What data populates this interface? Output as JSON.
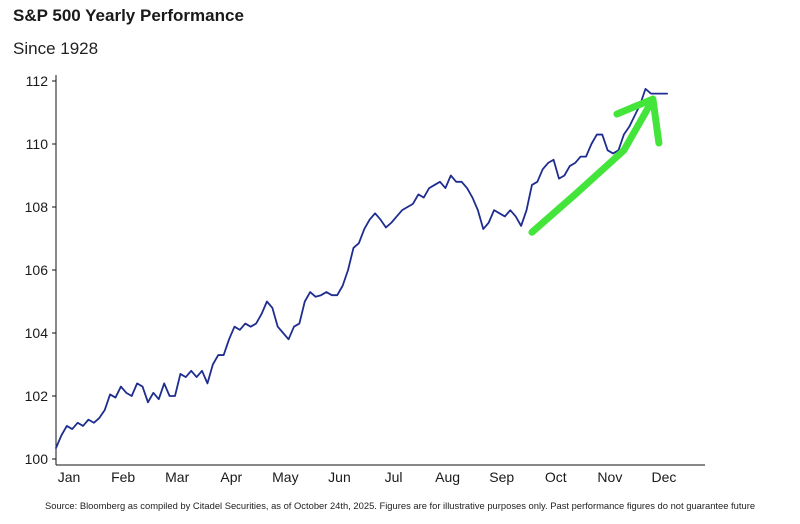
{
  "header": {
    "title": "S&P 500 Yearly Performance",
    "subtitle": "Since 1928"
  },
  "footer": {
    "source": "Source: Bloomberg as compiled by Citadel Securities, as of October 24th, 2025. Figures are for illustrative purposes only. Past performance figures do not guarantee future"
  },
  "chart_data": {
    "type": "line",
    "title": "S&P 500 Yearly Performance",
    "subtitle": "Since 1928",
    "xlabel": "",
    "ylabel": "",
    "x_ticks": [
      "Jan",
      "Feb",
      "Mar",
      "Apr",
      "May",
      "Jun",
      "Jul",
      "Aug",
      "Sep",
      "Oct",
      "Nov",
      "Dec"
    ],
    "y_ticks": [
      100,
      102,
      104,
      106,
      108,
      110,
      112
    ],
    "xlim": [
      0,
      12
    ],
    "ylim": [
      100,
      112
    ],
    "grid": false,
    "legend": "none",
    "series": [
      {
        "color": "#1e2d8f",
        "x": [
          0.0,
          0.1,
          0.2,
          0.3,
          0.4,
          0.5,
          0.6,
          0.7,
          0.8,
          0.9,
          1.0,
          1.1,
          1.2,
          1.3,
          1.4,
          1.5,
          1.6,
          1.7,
          1.8,
          1.9,
          2.0,
          2.1,
          2.2,
          2.3,
          2.4,
          2.5,
          2.6,
          2.7,
          2.8,
          2.9,
          3.0,
          3.1,
          3.2,
          3.3,
          3.4,
          3.5,
          3.6,
          3.7,
          3.8,
          3.9,
          4.0,
          4.1,
          4.2,
          4.3,
          4.4,
          4.5,
          4.6,
          4.7,
          4.8,
          4.9,
          5.0,
          5.1,
          5.2,
          5.3,
          5.4,
          5.5,
          5.6,
          5.7,
          5.8,
          5.9,
          6.0,
          6.1,
          6.2,
          6.3,
          6.4,
          6.5,
          6.6,
          6.7,
          6.8,
          6.9,
          7.0,
          7.1,
          7.2,
          7.3,
          7.4,
          7.5,
          7.6,
          7.7,
          7.8,
          7.9,
          8.0,
          8.1,
          8.2,
          8.3,
          8.4,
          8.5,
          8.6,
          8.7,
          8.8,
          8.9,
          9.0,
          9.1,
          9.2,
          9.3,
          9.4,
          9.5,
          9.6,
          9.7,
          9.8,
          9.9,
          10.0,
          10.1,
          10.2,
          10.3,
          10.4,
          10.5,
          10.6,
          10.7,
          10.8,
          10.9,
          11.0,
          11.1,
          11.2,
          11.3
        ],
        "values": [
          100.35,
          100.75,
          101.05,
          100.95,
          101.15,
          101.05,
          101.25,
          101.15,
          101.3,
          101.55,
          102.05,
          101.95,
          102.3,
          102.1,
          102.0,
          102.4,
          102.3,
          101.8,
          102.1,
          101.9,
          102.4,
          102.0,
          102.0,
          102.7,
          102.6,
          102.8,
          102.6,
          102.8,
          102.4,
          103.0,
          103.3,
          103.3,
          103.8,
          104.2,
          104.1,
          104.3,
          104.2,
          104.3,
          104.6,
          105.0,
          104.8,
          104.2,
          104.0,
          103.8,
          104.2,
          104.3,
          105.0,
          105.3,
          105.15,
          105.2,
          105.3,
          105.2,
          105.2,
          105.5,
          106.0,
          106.7,
          106.85,
          107.3,
          107.6,
          107.8,
          107.6,
          107.35,
          107.5,
          107.7,
          107.9,
          108.0,
          108.1,
          108.4,
          108.3,
          108.6,
          108.7,
          108.8,
          108.6,
          109.0,
          108.8,
          108.8,
          108.6,
          108.3,
          107.9,
          107.3,
          107.5,
          107.9,
          107.8,
          107.7,
          107.9,
          107.7,
          107.4,
          107.9,
          108.7,
          108.8,
          109.2,
          109.4,
          109.5,
          108.9,
          109.0,
          109.3,
          109.4,
          109.6,
          109.6,
          110.0,
          110.3,
          110.3,
          109.8,
          109.7,
          109.8,
          110.3,
          110.55,
          110.9,
          111.25,
          111.75,
          111.6,
          111.6,
          111.6,
          111.6
        ]
      },
      {
        "color": "#44e53a",
        "x": [
          8.8,
          9.6,
          10.5,
          11.0
        ],
        "values": [
          107.2,
          108.4,
          109.8,
          111.3
        ]
      }
    ],
    "annotations": [
      {
        "type": "arrow",
        "color": "#44e53a",
        "description": ""
      }
    ]
  }
}
